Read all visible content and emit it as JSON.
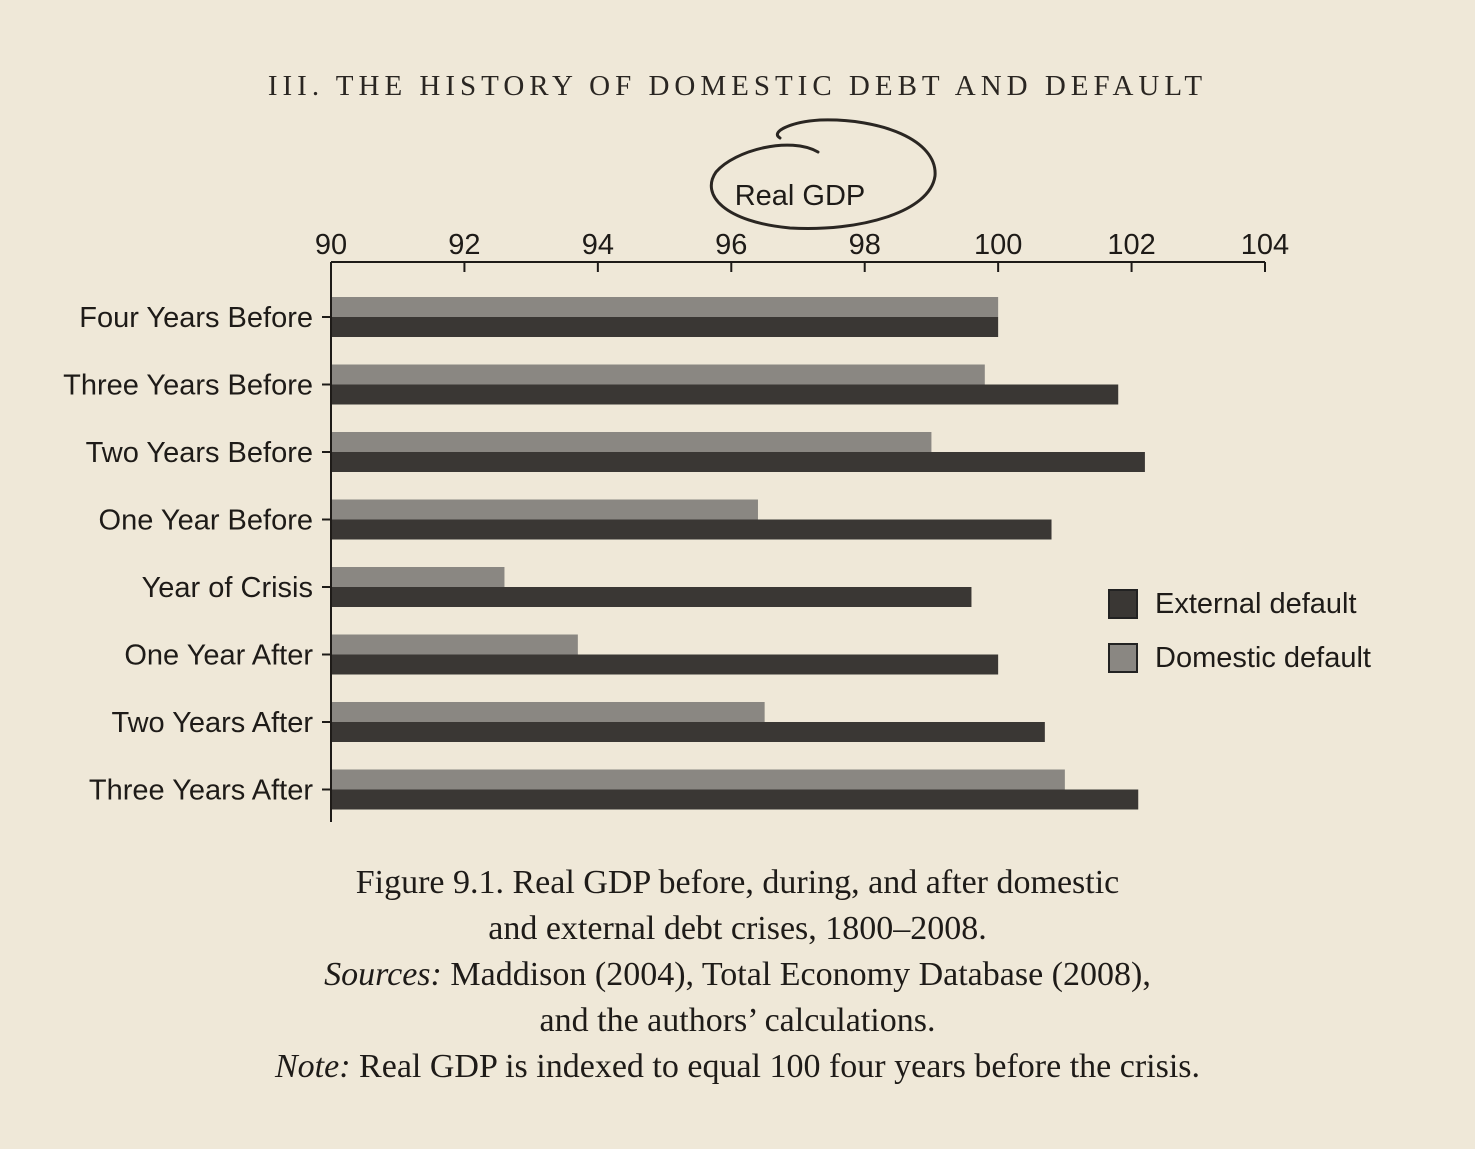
{
  "running_head": "III. THE HISTORY OF DOMESTIC DEBT AND DEFAULT",
  "colors": {
    "external": "#3a3734",
    "domestic": "#8a8782",
    "axis": "#1e1b18",
    "annotation": "#2a2622"
  },
  "chart_data": {
    "type": "bar",
    "orientation": "horizontal",
    "title": "Real GDP",
    "xlim": [
      90,
      104
    ],
    "xticks": [
      90,
      92,
      94,
      96,
      98,
      100,
      102,
      104
    ],
    "categories": [
      "Four Years Before",
      "Three Years Before",
      "Two Years Before",
      "One Year Before",
      "Year of Crisis",
      "One Year After",
      "Two Years After",
      "Three Years After"
    ],
    "series": [
      {
        "name": "Domestic default",
        "values": [
          100.0,
          99.8,
          99.0,
          96.4,
          92.6,
          93.7,
          96.5,
          101.0
        ]
      },
      {
        "name": "External default",
        "values": [
          100.0,
          101.8,
          102.2,
          100.8,
          99.6,
          100.0,
          100.7,
          102.1
        ]
      }
    ],
    "legend": "right",
    "grid": false
  },
  "legend": {
    "external_label": "External default",
    "domestic_label": "Domestic default"
  },
  "caption": {
    "line1": "Figure 9.1. Real GDP before, during, and after domestic",
    "line2": "and external debt crises, 1800–2008.",
    "sources_label": "Sources:",
    "sources_text": " Maddison (2004), Total Economy Database (2008),",
    "line4": "and the authors’ calculations.",
    "note_label": "Note:",
    "note_text": " Real GDP is indexed to equal 100 four years before the crisis."
  }
}
